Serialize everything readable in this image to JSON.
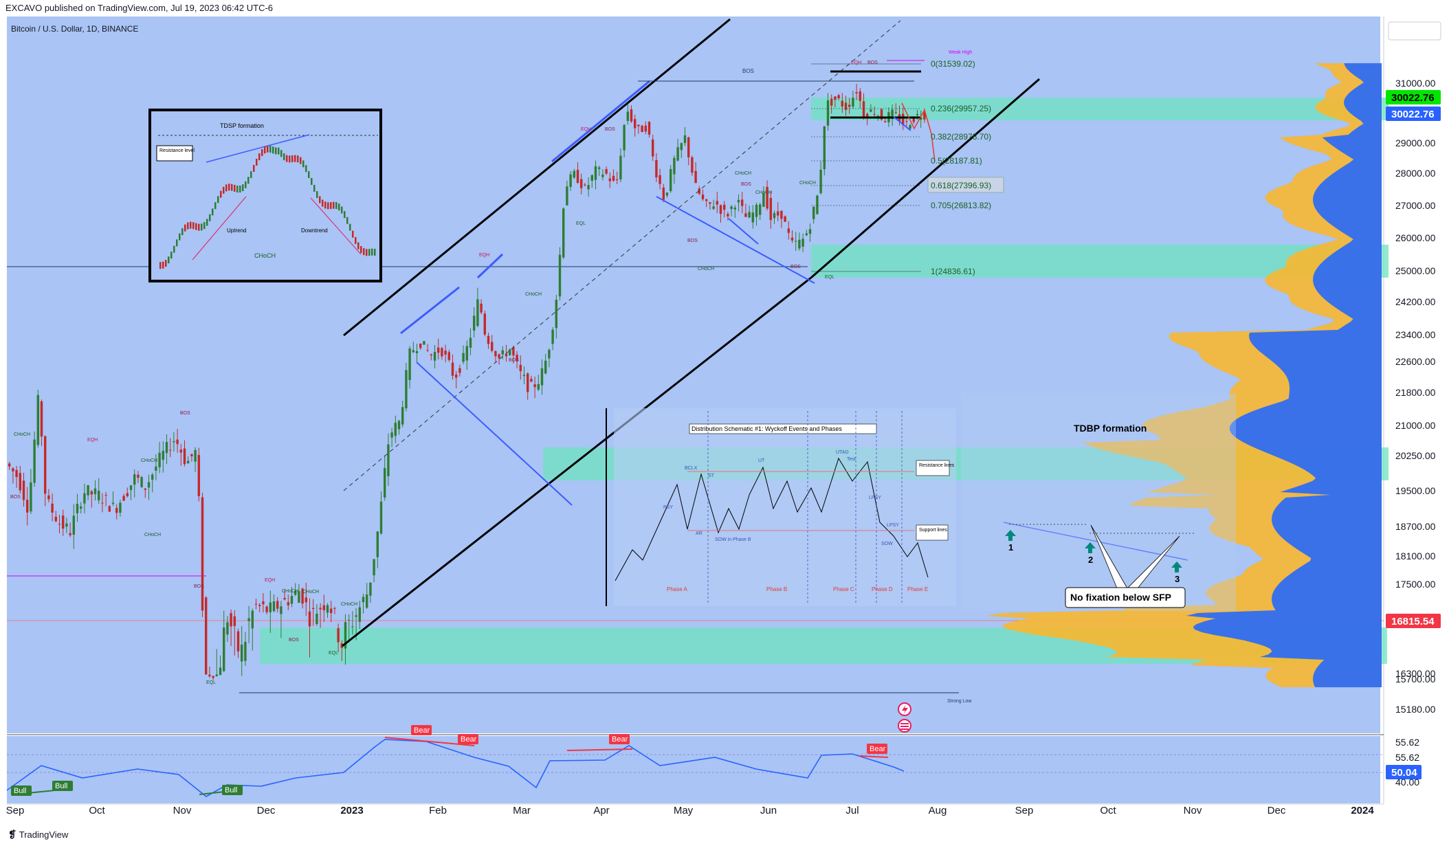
{
  "header": {
    "published": "EXCAVO published on TradingView.com, Jul 19, 2023 06:42 UTC-6",
    "symbol": "Bitcoin / U.S. Dollar, 1D, BINANCE"
  },
  "footer": {
    "brand": "TradingView",
    "logo": "tradingview-logo-icon"
  },
  "colors": {
    "chart_bg": "#a9c4f5",
    "candle_up": "#2e7d32",
    "candle_down": "#c62828",
    "zone": "#6fe3c0",
    "price_green": "#00e600",
    "price_blue": "#2962ff",
    "price_red": "#f23645",
    "vp_blue": "#2f6df2",
    "vp_orange": "#f7b731",
    "rsi_line": "#2962ff"
  },
  "chart_data": [
    {
      "type": "candlestick",
      "title": "Bitcoin / U.S. Dollar, 1D, BINANCE",
      "x_ticks": [
        "Sep",
        "Oct",
        "Nov",
        "Dec",
        "2023",
        "Feb",
        "Mar",
        "Apr",
        "May",
        "Jun",
        "Jul",
        "Aug",
        "Sep",
        "Oct",
        "Nov",
        "Dec",
        "2024"
      ],
      "y_ticks": [
        "31000.00",
        "29000.00",
        "28000.00",
        "27000.00",
        "26000.00",
        "25000.00",
        "24200.00",
        "23400.00",
        "22600.00",
        "21800.00",
        "21000.00",
        "20250.00",
        "19500.00",
        "18700.00",
        "18100.00",
        "17500.00",
        "16300.00",
        "15700.00",
        "15180.00"
      ],
      "price_labels": [
        {
          "value": "30022.76",
          "style": "green"
        },
        {
          "value": "30022.76",
          "style": "blue"
        },
        {
          "value": "16815.54",
          "style": "red"
        }
      ],
      "fib_levels": [
        {
          "label": "0(31539.02)"
        },
        {
          "label": "0.236(29957.25)"
        },
        {
          "label": "0.382(28978.70)"
        },
        {
          "label": "0.5(28187.81)"
        },
        {
          "label": "0.618(27396.93)"
        },
        {
          "label": "0.705(26813.82)"
        },
        {
          "label": "1(24836.61)"
        }
      ],
      "annotations": {
        "tdsp_title": "TDSP formation",
        "tdsp_resistance": "Resistance level",
        "tdsp_uptrend": "Uptrend",
        "tdsp_downtrend": "Downtrend",
        "tdsp_choch": "CHoCH",
        "wyckoff_title": "Distribution Schematic #1: Wyckoff Events and Phases",
        "wyckoff_resistance": "Resistance lines",
        "wyckoff_support": "Support lines",
        "wyckoff_phases": [
          "Phase A",
          "Phase B",
          "Phase C",
          "Phase D",
          "Phase E"
        ],
        "wyckoff_events": [
          "PSY",
          "BCLX",
          "AR",
          "ST",
          "SOW in Phase B",
          "UT",
          "UTAD",
          "Test",
          "LPSY",
          "LPSY",
          "SOW"
        ],
        "tdbp_title": "TDBP formation",
        "tdbp_numbers": [
          "1",
          "2",
          "3"
        ],
        "sfp_note": "No fixation below SFP",
        "strong_low": "Strong Low",
        "weak_high": "Weak High",
        "smc": [
          "BOS",
          "BOS",
          "BOS",
          "BOS",
          "BOS",
          "BOS",
          "BOS",
          "BOS",
          "BOS",
          "BOS",
          "CHoCH",
          "CHoCH",
          "CHoCH",
          "CHoCH",
          "CHoCH",
          "CHoCH",
          "CHoCH",
          "CHoCH",
          "CHoCH",
          "CHoCH",
          "CHoCH",
          "EQH",
          "EQH",
          "EQH",
          "EQH",
          "EQH",
          "EQL",
          "EQL",
          "EQL",
          "EQL"
        ]
      }
    },
    {
      "type": "line",
      "title": "",
      "y_ticks": [
        "55.62",
        "55.62",
        "50.04",
        "40.00"
      ],
      "current_value": "50.04",
      "divergence_labels": [
        "Bear",
        "Bear",
        "Bear",
        "Bear",
        "Bull",
        "Bull",
        "Bull"
      ]
    }
  ]
}
